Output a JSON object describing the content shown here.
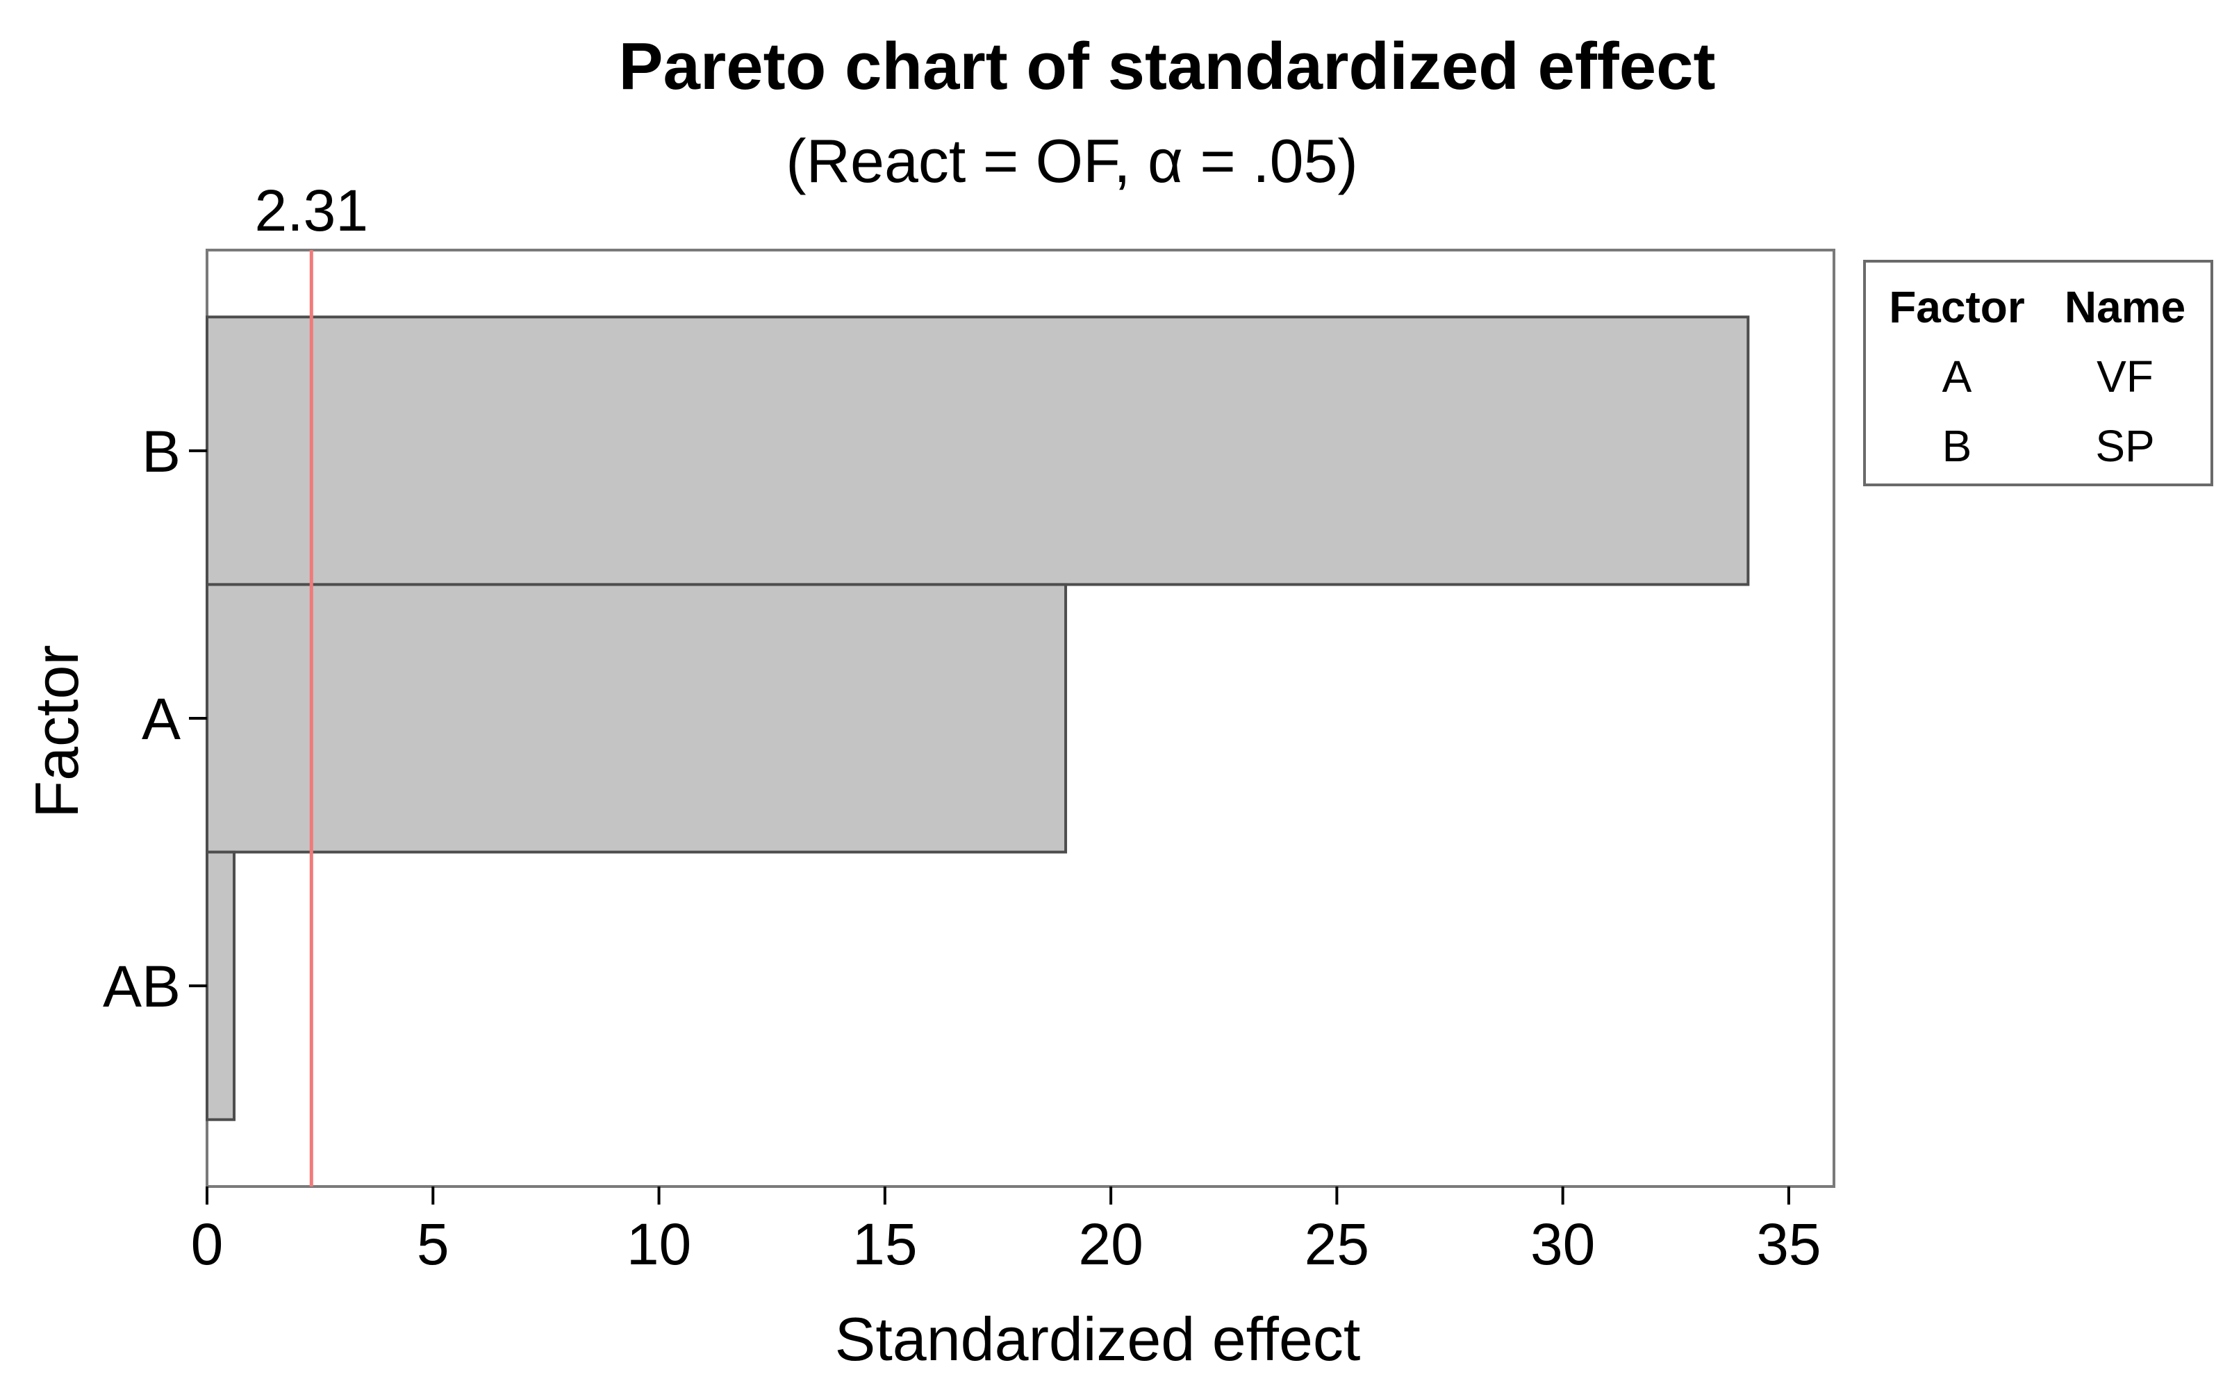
{
  "chart_data": {
    "type": "bar",
    "orientation": "horizontal",
    "title": "Pareto chart of standardized effect",
    "subtitle": "(React = OF, α = .05)",
    "xlabel": "Standardized effect",
    "ylabel": "Factor",
    "categories": [
      "B",
      "A",
      "AB"
    ],
    "values": [
      34.1,
      19.0,
      0.6
    ],
    "xlim": [
      0,
      36
    ],
    "xticks": [
      0,
      5,
      10,
      15,
      20,
      25,
      30,
      35
    ],
    "xtick_labels": [
      "0",
      "5",
      "10",
      "15",
      "20",
      "25",
      "30",
      "35"
    ],
    "reference_line": {
      "value": 2.31,
      "label": "2.31"
    },
    "bar_color": "#c4c4c4",
    "bar_edge_color": "#4d4d4d",
    "reference_line_color": "#f07a7a",
    "grid": false,
    "legend": {
      "placement": "right",
      "headers": [
        "Factor",
        "Name"
      ],
      "rows": [
        [
          "A",
          "VF"
        ],
        [
          "B",
          "SP"
        ]
      ]
    }
  }
}
